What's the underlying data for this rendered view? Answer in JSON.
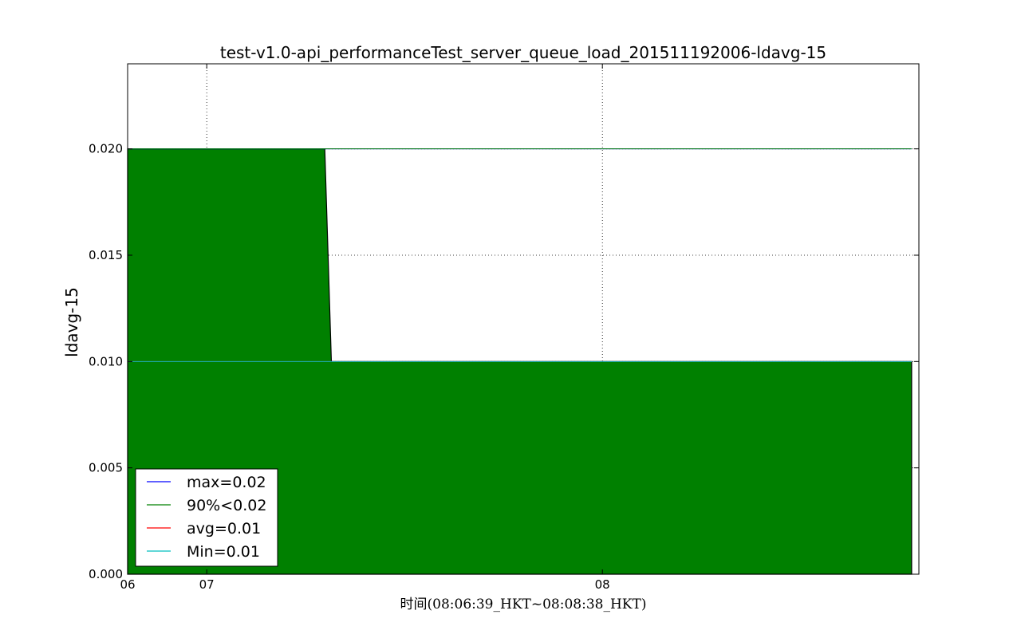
{
  "chart_data": {
    "type": "area",
    "title": "test-v1.0-api_performanceTest_server_queue_load_201511192006-ldavg-15",
    "xlabel": "时间(08:06:39_HKT~08:08:38_HKT)",
    "ylabel": "ldavg-15",
    "x_unit": "seconds after 08:06:00",
    "xlim": [
      60,
      180
    ],
    "ylim": [
      0,
      0.024
    ],
    "xticks": [
      60,
      72,
      132
    ],
    "xtick_labels": [
      "06",
      "07",
      "08"
    ],
    "yticks": [
      0.0,
      0.005,
      0.01,
      0.015,
      0.02
    ],
    "ytick_labels": [
      "0.000",
      "0.005",
      "0.010",
      "0.015",
      "0.020"
    ],
    "grid": true,
    "series": [
      {
        "name": "ldavg-15",
        "color": "#008000",
        "x": [
          60,
          89.9,
          90.9,
          178.9
        ],
        "y": [
          0.02,
          0.02,
          0.01,
          0.01
        ]
      }
    ],
    "reference_lines": [
      {
        "label": "max=0.02",
        "value": 0.02,
        "color": "#0000ff"
      },
      {
        "label": "90%<0.02",
        "value": 0.02,
        "color": "#008000"
      },
      {
        "label": "avg=0.01",
        "value": 0.01,
        "color": "#ff0000"
      },
      {
        "label": "Min=0.01",
        "value": 0.01,
        "color": "#00bfbf"
      }
    ],
    "legend_position": "lower-left"
  }
}
